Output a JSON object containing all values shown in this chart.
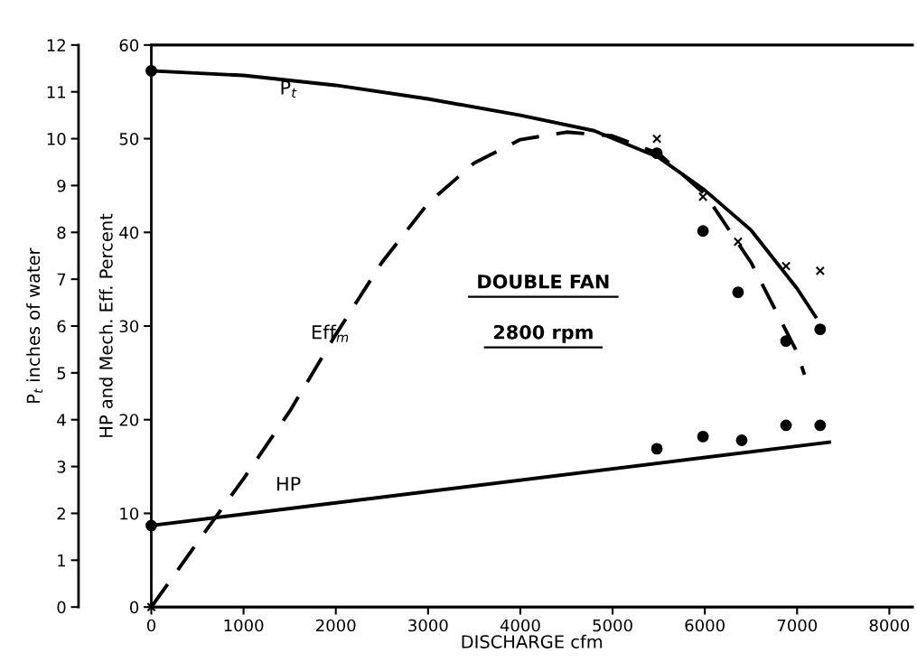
{
  "chart_data": {
    "type": "line",
    "xlabel": "DISCHARGE cfm",
    "ylabel": "P$_{t}$ inches of water",
    "y2label": "HP and Mech. Eff. Percent",
    "xlim": [
      0,
      8250
    ],
    "xticks": [
      0,
      1000,
      2000,
      3000,
      4000,
      5000,
      6000,
      7000,
      8000
    ],
    "ylim": [
      0,
      12
    ],
    "yticks": [
      0,
      1,
      2,
      3,
      4,
      5,
      6,
      7,
      8,
      9,
      10,
      11,
      12
    ],
    "y2lim": [
      0,
      60
    ],
    "y2ticks": [
      0,
      10,
      20,
      30,
      40,
      50,
      60
    ],
    "grid": false,
    "series": [
      {
        "axis": "y",
        "color": "#000000",
        "line_style": "solid",
        "marker": "none",
        "x": [
          0,
          1000,
          2000,
          3000,
          4000,
          4800,
          5500,
          6000,
          6500,
          7000,
          7200
        ],
        "values": [
          11.45,
          11.35,
          11.14,
          10.85,
          10.5,
          10.17,
          9.6,
          8.9,
          8.05,
          6.8,
          6.2
        ]
      },
      {
        "type": "scatter",
        "axis": "y",
        "color": "#000000",
        "marker": "circle",
        "x": [
          0,
          5480,
          5980,
          6360,
          6880,
          7250
        ],
        "values": [
          11.45,
          9.69,
          8.03,
          6.72,
          5.68,
          5.93
        ]
      },
      {
        "axis": "y2",
        "color": "#000000",
        "line_style": "dashed",
        "marker": "none",
        "x": [
          0,
          500,
          1000,
          1500,
          2000,
          2500,
          3000,
          3500,
          4000,
          4500,
          5000,
          5500,
          6000,
          6500,
          7000,
          7080
        ],
        "values": [
          0,
          6.9,
          13.7,
          20.9,
          29.1,
          36.8,
          43.1,
          47.4,
          49.9,
          50.7,
          50.3,
          48.4,
          44.1,
          36.8,
          27.2,
          24.8
        ]
      },
      {
        "type": "scatter",
        "axis": "y2",
        "color": "#000000",
        "marker": "cross",
        "x": [
          0,
          5480,
          5980,
          6360,
          6880,
          7250
        ],
        "values": [
          0,
          50.0,
          43.8,
          39.0,
          36.4,
          35.9
        ]
      },
      {
        "axis": "y2",
        "color": "#000000",
        "line_style": "solid",
        "marker": "none",
        "x": [
          0,
          7350
        ],
        "values": [
          8.7,
          17.6
        ]
      },
      {
        "type": "scatter",
        "axis": "y2",
        "color": "#000000",
        "marker": "circle",
        "x": [
          0,
          5480,
          5980,
          6400,
          6880,
          7250
        ],
        "values": [
          8.7,
          16.9,
          18.2,
          17.8,
          19.4,
          19.4
        ]
      }
    ],
    "annotations": [
      "P$_{t}$",
      "Eff$_{m}$",
      "HP",
      "DOUBLE FAN",
      "2800 rpm"
    ]
  }
}
